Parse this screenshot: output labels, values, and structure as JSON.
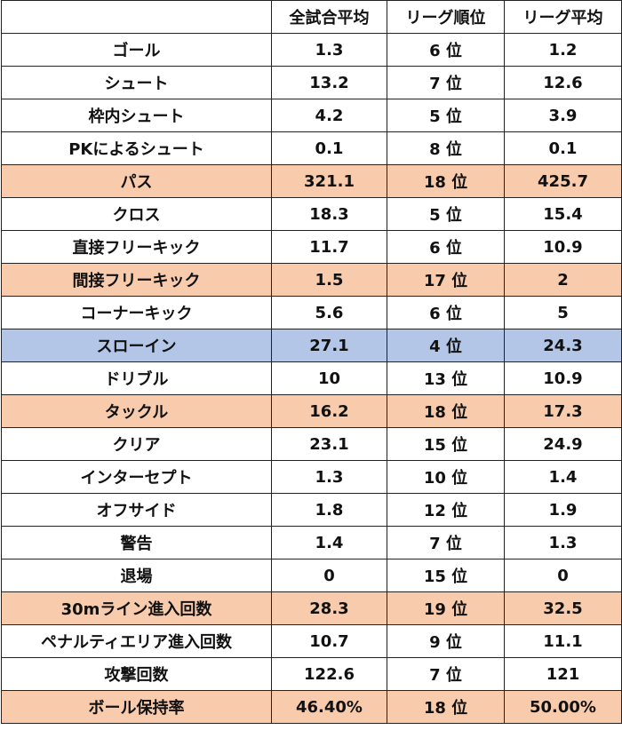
{
  "header": {
    "blank": "",
    "col_avg": "全試合平均",
    "col_rank": "リーグ順位",
    "col_league_avg": "リーグ平均"
  },
  "rows": [
    {
      "label": "ゴール",
      "avg": "1.3",
      "rank": "6 位",
      "league": "1.2",
      "highlight": "none"
    },
    {
      "label": "シュート",
      "avg": "13.2",
      "rank": "7 位",
      "league": "12.6",
      "highlight": "none"
    },
    {
      "label": "枠内シュート",
      "avg": "4.2",
      "rank": "5 位",
      "league": "3.9",
      "highlight": "none"
    },
    {
      "label": "PKによるシュート",
      "avg": "0.1",
      "rank": "8 位",
      "league": "0.1",
      "highlight": "none"
    },
    {
      "label": "パス",
      "avg": "321.1",
      "rank": "18 位",
      "league": "425.7",
      "highlight": "orange"
    },
    {
      "label": "クロス",
      "avg": "18.3",
      "rank": "5 位",
      "league": "15.4",
      "highlight": "none"
    },
    {
      "label": "直接フリーキック",
      "avg": "11.7",
      "rank": "6 位",
      "league": "10.9",
      "highlight": "none"
    },
    {
      "label": "間接フリーキック",
      "avg": "1.5",
      "rank": "17 位",
      "league": "2",
      "highlight": "orange"
    },
    {
      "label": "コーナーキック",
      "avg": "5.6",
      "rank": "6 位",
      "league": "5",
      "highlight": "none"
    },
    {
      "label": "スローイン",
      "avg": "27.1",
      "rank": "4 位",
      "league": "24.3",
      "highlight": "blue"
    },
    {
      "label": "ドリブル",
      "avg": "10",
      "rank": "13 位",
      "league": "10.9",
      "highlight": "none"
    },
    {
      "label": "タックル",
      "avg": "16.2",
      "rank": "18 位",
      "league": "17.3",
      "highlight": "orange"
    },
    {
      "label": "クリア",
      "avg": "23.1",
      "rank": "15 位",
      "league": "24.9",
      "highlight": "none"
    },
    {
      "label": "インターセプト",
      "avg": "1.3",
      "rank": "10 位",
      "league": "1.4",
      "highlight": "none"
    },
    {
      "label": "オフサイド",
      "avg": "1.8",
      "rank": "12 位",
      "league": "1.9",
      "highlight": "none"
    },
    {
      "label": "警告",
      "avg": "1.4",
      "rank": "7 位",
      "league": "1.3",
      "highlight": "none"
    },
    {
      "label": "退場",
      "avg": "0",
      "rank": "15 位",
      "league": "0",
      "highlight": "none"
    },
    {
      "label": "30mライン進入回数",
      "avg": "28.3",
      "rank": "19 位",
      "league": "32.5",
      "highlight": "orange"
    },
    {
      "label": "ペナルティエリア進入回数",
      "avg": "10.7",
      "rank": "9 位",
      "league": "11.1",
      "highlight": "none"
    },
    {
      "label": "攻撃回数",
      "avg": "122.6",
      "rank": "7 位",
      "league": "121",
      "highlight": "none"
    },
    {
      "label": "ボール保持率",
      "avg": "46.40%",
      "rank": "18 位",
      "league": "50.00%",
      "highlight": "orange"
    }
  ],
  "colors": {
    "orange_highlight": "#f8cbad",
    "blue_highlight": "#b4c6e7",
    "border": "#222222"
  }
}
